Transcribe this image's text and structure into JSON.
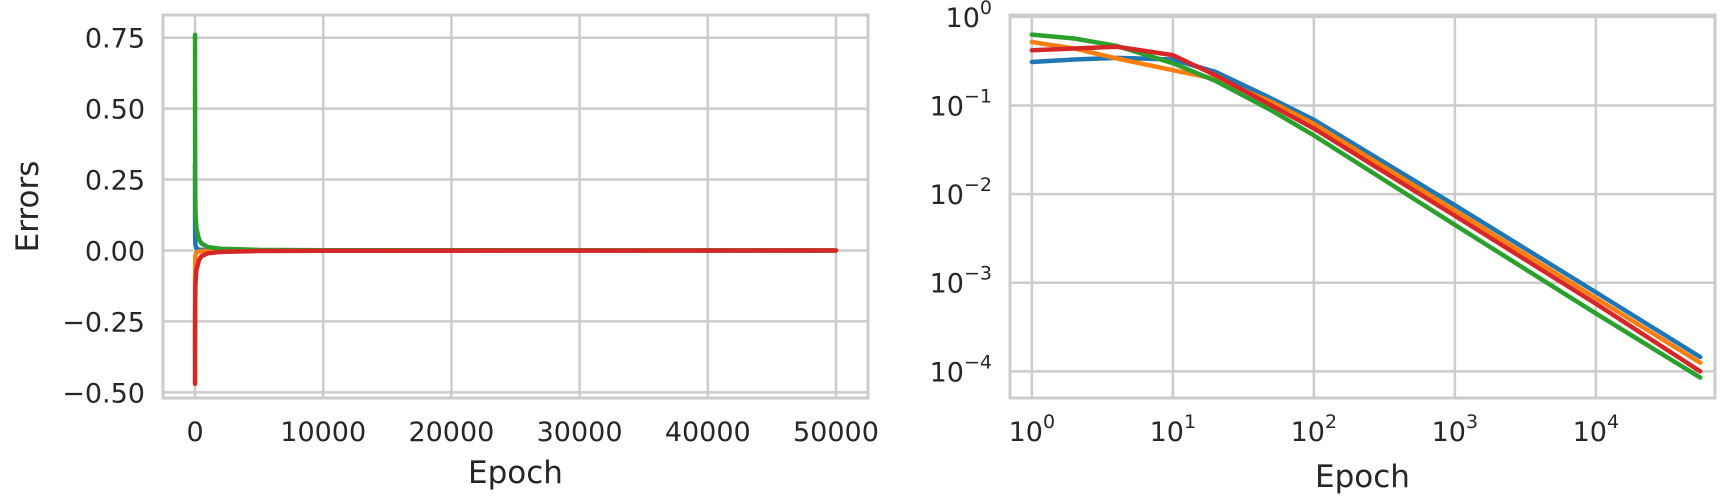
{
  "chart_data": [
    {
      "type": "line",
      "xlabel": "Epoch",
      "ylabel": "Errors",
      "xlim": [
        -2500,
        52500
      ],
      "ylim": [
        -0.52,
        0.83
      ],
      "xticks": [
        0,
        10000,
        20000,
        30000,
        40000,
        50000
      ],
      "xtick_labels": [
        "0",
        "10000",
        "20000",
        "30000",
        "40000",
        "50000"
      ],
      "yticks": [
        -0.5,
        -0.25,
        0.0,
        0.25,
        0.5,
        0.75
      ],
      "ytick_labels": [
        "−0.50",
        "−0.25",
        "0.00",
        "0.25",
        "0.50",
        "0.75"
      ],
      "grid": true,
      "series": [
        {
          "color": "#1f77b4",
          "x": [
            0,
            1,
            2,
            5,
            10,
            30,
            100,
            300,
            1000,
            3000,
            10000,
            50000
          ],
          "y": [
            0.3,
            0.26,
            0.2,
            0.1,
            0.05,
            0.02,
            0.008,
            0.003,
            0.001,
            0.0004,
            0.0001,
            0.0
          ]
        },
        {
          "color": "#ff7f0e",
          "x": [
            0,
            1,
            2,
            5,
            10,
            30,
            100,
            300,
            1000,
            3000,
            10000,
            50000
          ],
          "y": [
            -0.35,
            -0.3,
            -0.24,
            -0.12,
            -0.06,
            -0.02,
            -0.008,
            -0.003,
            -0.001,
            -0.0004,
            -0.0001,
            0.0
          ]
        },
        {
          "color": "#2ca02c",
          "x": [
            0,
            1,
            2,
            5,
            10,
            30,
            100,
            300,
            500,
            1000,
            2000,
            5000,
            10000,
            50000
          ],
          "y": [
            0.76,
            0.7,
            0.6,
            0.4,
            0.25,
            0.14,
            0.08,
            0.04,
            0.025,
            0.012,
            0.006,
            0.002,
            0.001,
            0.0
          ]
        },
        {
          "color": "#d62728",
          "x": [
            0,
            1,
            2,
            5,
            10,
            30,
            100,
            300,
            500,
            1000,
            2000,
            5000,
            10000,
            50000
          ],
          "y": [
            -0.47,
            -0.45,
            -0.4,
            -0.3,
            -0.2,
            -0.12,
            -0.07,
            -0.035,
            -0.02,
            -0.01,
            -0.005,
            -0.002,
            -0.001,
            0.0
          ]
        }
      ]
    },
    {
      "type": "line",
      "xlabel": "Epoch",
      "ylabel": "",
      "xscale": "log",
      "yscale": "log",
      "xlim": [
        0.7,
        70000
      ],
      "ylim": [
        5e-05,
        1.05
      ],
      "xticks": [
        1,
        10,
        100,
        1000,
        10000
      ],
      "xtick_base": [
        "10",
        "10",
        "10",
        "10",
        "10"
      ],
      "xtick_exp": [
        "0",
        "1",
        "2",
        "3",
        "4"
      ],
      "yticks": [
        1,
        0.1,
        0.01,
        0.001,
        0.0001
      ],
      "ytick_base": [
        "10",
        "10",
        "10",
        "10",
        "10"
      ],
      "ytick_exp": [
        "0",
        "−1",
        "−2",
        "−3",
        "−4"
      ],
      "grid": true,
      "series": [
        {
          "color": "#1f77b4",
          "x": [
            1,
            2,
            4,
            10,
            20,
            50,
            100,
            1000,
            10000,
            55000
          ],
          "y": [
            0.31,
            0.33,
            0.345,
            0.33,
            0.24,
            0.12,
            0.069,
            0.0075,
            0.00078,
            0.000145
          ]
        },
        {
          "color": "#ff7f0e",
          "x": [
            1,
            2,
            4,
            10,
            20,
            50,
            100,
            1000,
            10000,
            55000
          ],
          "y": [
            0.52,
            0.44,
            0.34,
            0.25,
            0.2,
            0.11,
            0.062,
            0.0065,
            0.00067,
            0.000125
          ]
        },
        {
          "color": "#2ca02c",
          "x": [
            1,
            2,
            4,
            10,
            20,
            50,
            100,
            1000,
            10000,
            55000
          ],
          "y": [
            0.63,
            0.57,
            0.47,
            0.3,
            0.19,
            0.088,
            0.046,
            0.0045,
            0.00045,
            8.5e-05
          ]
        },
        {
          "color": "#d62728",
          "x": [
            1,
            2,
            4,
            10,
            20,
            50,
            100,
            1000,
            10000,
            55000
          ],
          "y": [
            0.42,
            0.44,
            0.46,
            0.37,
            0.22,
            0.1,
            0.055,
            0.0057,
            0.00058,
            0.0001
          ]
        }
      ]
    }
  ]
}
